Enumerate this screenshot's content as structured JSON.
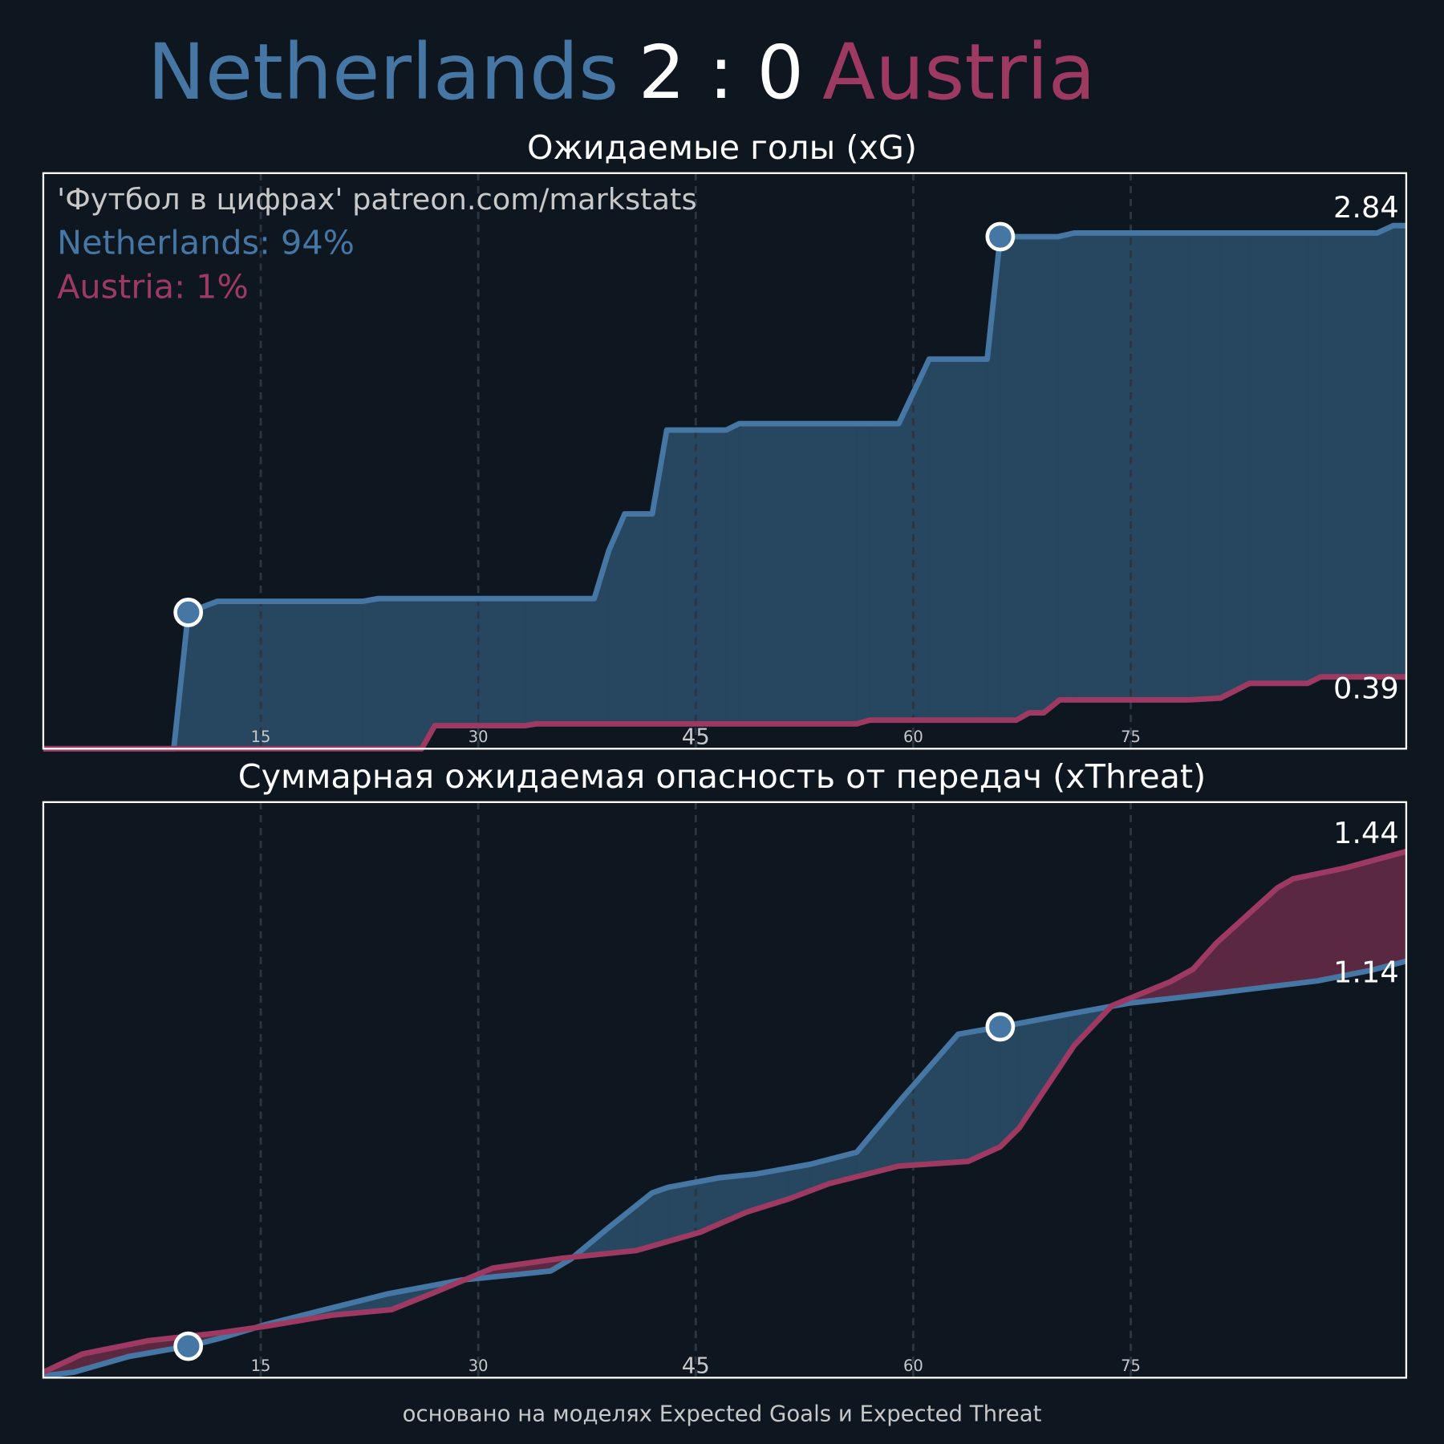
{
  "score": "2 : 0",
  "footer": "основано на моделях Expected Goals и Expected Threat",
  "chart_data": [
    {
      "type": "line",
      "title": "Ожидаемые голы (xG)",
      "watermark": "'Футбол в цифрах' patreon.com/markstats",
      "win_probabilities": [
        "Netherlands: 94%",
        "Austria: 1%"
      ],
      "xlim": [
        0,
        94
      ],
      "ylim": [
        0,
        3.125
      ],
      "xticks": [
        15,
        30,
        45,
        60,
        75
      ],
      "grid": true,
      "series": [
        {
          "name": "Netherlands",
          "color": "#4676a3",
          "fill": "#27465f",
          "goal_minutes": [
            10,
            66
          ],
          "x": [
            0,
            9,
            10,
            12,
            22,
            23.1,
            38,
            39,
            40.1,
            42,
            43,
            47.1,
            48,
            59,
            61.1,
            65.1,
            66,
            70,
            71.1,
            92,
            93.1,
            94
          ],
          "values": [
            0,
            0,
            0.74,
            0.8,
            0.8,
            0.815,
            0.815,
            1.075,
            1.275,
            1.275,
            1.73,
            1.73,
            1.765,
            1.765,
            2.115,
            2.115,
            2.78,
            2.78,
            2.8,
            2.8,
            2.84,
            2.84
          ]
        },
        {
          "name": "Austria",
          "color": "#9e3a62",
          "fill": "#5a2840",
          "x": [
            0,
            26.1,
            27,
            33.2,
            34,
            56.1,
            57,
            67.1,
            68,
            69,
            70.1,
            79,
            81.2,
            83.2,
            87.2,
            88.1,
            94
          ],
          "values": [
            0,
            0,
            0.125,
            0.125,
            0.135,
            0.135,
            0.155,
            0.155,
            0.195,
            0.195,
            0.265,
            0.265,
            0.275,
            0.355,
            0.355,
            0.39,
            0.39
          ]
        }
      ]
    },
    {
      "type": "line",
      "title": "Суммарная ожидаемая опасность от передач (xThreat)",
      "xlim": [
        0,
        94
      ],
      "ylim": [
        0,
        1.575
      ],
      "xticks": [
        15,
        30,
        45,
        60,
        75
      ],
      "grid": true,
      "series": [
        {
          "color": "#4676a3",
          "fill": "#27465f",
          "goal_minutes": [
            10,
            66
          ],
          "x": [
            0,
            2.1,
            5.9,
            8.5,
            10,
            12.2,
            15.4,
            18.9,
            23.7,
            28.8,
            32.6,
            35,
            36.4,
            39,
            42,
            43.1,
            46.6,
            49.1,
            52.9,
            56.1,
            59.3,
            63.1,
            66,
            70.7,
            74.9,
            78.3,
            81.5,
            87.9,
            91.7,
            94
          ],
          "values": [
            0.005,
            0.015,
            0.058,
            0.076,
            0.086,
            0.108,
            0.146,
            0.181,
            0.229,
            0.267,
            0.282,
            0.292,
            0.325,
            0.411,
            0.506,
            0.521,
            0.547,
            0.557,
            0.584,
            0.617,
            0.768,
            0.94,
            0.96,
            0.995,
            1.025,
            1.04,
            1.055,
            1.086,
            1.116,
            1.14
          ]
        },
        {
          "color": "#9e3a62",
          "fill": "#5a2840",
          "x": [
            0,
            2.7,
            7.2,
            12.2,
            15.4,
            19.9,
            24,
            26.9,
            31,
            35.8,
            40.9,
            45.3,
            48.5,
            51.4,
            54.2,
            59,
            63.8,
            66,
            67.3,
            71.1,
            73.7,
            77.7,
            79.3,
            80.9,
            85.1,
            86.2,
            89.8,
            94
          ],
          "values": [
            0.015,
            0.065,
            0.101,
            0.123,
            0.141,
            0.171,
            0.186,
            0.232,
            0.3,
            0.327,
            0.348,
            0.398,
            0.453,
            0.489,
            0.531,
            0.579,
            0.592,
            0.632,
            0.683,
            0.909,
            1.018,
            1.083,
            1.118,
            1.189,
            1.34,
            1.365,
            1.395,
            1.44
          ]
        }
      ]
    }
  ]
}
